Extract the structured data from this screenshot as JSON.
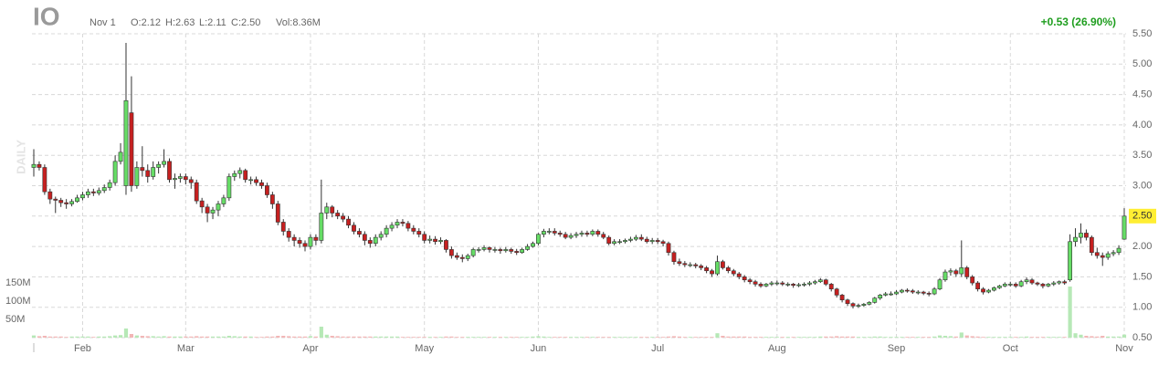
{
  "chart_data": {
    "type": "candlestick",
    "title": "IO",
    "date_label": "Nov 1",
    "ohlc_labels": [
      "O:2.12",
      "H:2.63",
      "L:2.11",
      "C:2.50"
    ],
    "volume_label": "Vol:8.36M",
    "change_label": "+0.53 (26.90%)",
    "watermark": "DAILY",
    "last_price": {
      "value": 2.5,
      "label": "2.50"
    },
    "up_color": "#66dd66",
    "down_color": "#c62020",
    "volume_up_color": "#b6e8b6",
    "volume_down_color": "#f2b6b6",
    "change_color": "#1f9e1f",
    "grid": true,
    "ylim": [
      0.5,
      5.5
    ],
    "yticks": [
      {
        "value": 0.5,
        "label": "0.50"
      },
      {
        "value": 1,
        "label": "1.00"
      },
      {
        "value": 1.5,
        "label": "1.50"
      },
      {
        "value": 2,
        "label": "2.00"
      },
      {
        "value": 2.5,
        "label": "2.50"
      },
      {
        "value": 3,
        "label": "3.00"
      },
      {
        "value": 3.5,
        "label": "3.50"
      },
      {
        "value": 4,
        "label": "4.00"
      },
      {
        "value": 4.5,
        "label": "4.50"
      },
      {
        "value": 5,
        "label": "5.00"
      },
      {
        "value": 5.5,
        "label": "5.50"
      }
    ],
    "volume_ylim": [
      0,
      150
    ],
    "volume_ticks": [
      {
        "value": 50,
        "label": "50M"
      },
      {
        "value": 100,
        "label": "100M"
      },
      {
        "value": 150,
        "label": "150M"
      }
    ],
    "categories": [
      null,
      null,
      null,
      null,
      null,
      null,
      null,
      null,
      null,
      "Feb",
      null,
      null,
      null,
      null,
      null,
      null,
      null,
      null,
      null,
      null,
      null,
      null,
      null,
      null,
      null,
      null,
      null,
      null,
      "Mar",
      null,
      null,
      null,
      null,
      null,
      null,
      null,
      null,
      null,
      null,
      null,
      null,
      null,
      null,
      null,
      null,
      null,
      null,
      null,
      null,
      null,
      null,
      "Apr",
      null,
      null,
      null,
      null,
      null,
      null,
      null,
      null,
      null,
      null,
      null,
      null,
      null,
      null,
      null,
      null,
      null,
      null,
      null,
      null,
      "May",
      null,
      null,
      null,
      null,
      null,
      null,
      null,
      null,
      null,
      null,
      null,
      null,
      null,
      null,
      null,
      null,
      null,
      null,
      null,
      null,
      "Jun",
      null,
      null,
      null,
      null,
      null,
      null,
      null,
      null,
      null,
      null,
      null,
      null,
      null,
      null,
      null,
      null,
      null,
      null,
      null,
      null,
      null,
      "Jul",
      null,
      null,
      null,
      null,
      null,
      null,
      null,
      null,
      null,
      null,
      null,
      null,
      null,
      null,
      null,
      null,
      null,
      null,
      null,
      null,
      null,
      "Aug",
      null,
      null,
      null,
      null,
      null,
      null,
      null,
      null,
      null,
      null,
      null,
      null,
      null,
      null,
      null,
      null,
      null,
      null,
      null,
      null,
      null,
      "Sep",
      null,
      null,
      null,
      null,
      null,
      null,
      null,
      null,
      null,
      null,
      null,
      null,
      null,
      null,
      null,
      null,
      null,
      null,
      null,
      null,
      "Oct",
      null,
      null,
      null,
      null,
      null,
      null,
      null,
      null,
      null,
      null,
      null,
      null,
      null,
      null,
      null,
      null,
      null,
      null,
      null,
      null,
      "Nov"
    ],
    "open": [
      3.3,
      3.35,
      3.3,
      2.9,
      2.78,
      2.76,
      2.72,
      2.7,
      2.74,
      2.8,
      2.85,
      2.9,
      2.88,
      2.92,
      2.97,
      3.05,
      3.4,
      3.0,
      4.2,
      3.0,
      3.3,
      3.25,
      3.15,
      3.3,
      3.35,
      3.4,
      3.1,
      3.12,
      3.15,
      3.1,
      3.05,
      2.75,
      2.65,
      2.55,
      2.6,
      2.7,
      2.8,
      3.15,
      3.2,
      3.25,
      3.1,
      3.1,
      3.05,
      3.0,
      2.85,
      2.7,
      2.4,
      2.25,
      2.15,
      2.1,
      2.05,
      2.0,
      2.15,
      2.1,
      2.55,
      2.65,
      2.55,
      2.5,
      2.45,
      2.35,
      2.25,
      2.2,
      2.1,
      2.05,
      2.15,
      2.2,
      2.3,
      2.35,
      2.4,
      2.38,
      2.3,
      2.25,
      2.2,
      2.1,
      2.12,
      2.08,
      2.1,
      1.95,
      1.85,
      1.82,
      1.8,
      1.85,
      1.95,
      1.95,
      1.98,
      1.95,
      1.95,
      1.93,
      1.95,
      1.92,
      1.9,
      1.95,
      2.0,
      2.05,
      2.2,
      2.25,
      2.25,
      2.22,
      2.2,
      2.15,
      2.18,
      2.2,
      2.22,
      2.2,
      2.25,
      2.2,
      2.15,
      2.05,
      2.08,
      2.08,
      2.1,
      2.12,
      2.15,
      2.12,
      2.08,
      2.1,
      2.08,
      2.05,
      1.9,
      1.75,
      1.72,
      1.7,
      1.7,
      1.68,
      1.65,
      1.6,
      1.55,
      1.75,
      1.65,
      1.6,
      1.55,
      1.5,
      1.45,
      1.42,
      1.38,
      1.35,
      1.38,
      1.4,
      1.4,
      1.38,
      1.38,
      1.36,
      1.37,
      1.38,
      1.4,
      1.42,
      1.45,
      1.38,
      1.3,
      1.2,
      1.12,
      1.06,
      1.02,
      1.03,
      1.05,
      1.08,
      1.15,
      1.2,
      1.22,
      1.22,
      1.25,
      1.28,
      1.27,
      1.25,
      1.25,
      1.23,
      1.22,
      1.3,
      1.45,
      1.58,
      1.6,
      1.55,
      1.65,
      1.5,
      1.4,
      1.3,
      1.25,
      1.28,
      1.32,
      1.35,
      1.38,
      1.38,
      1.35,
      1.42,
      1.45,
      1.4,
      1.38,
      1.35,
      1.38,
      1.4,
      1.42,
      1.45,
      2.08,
      2.15,
      2.22,
      2.15,
      1.9,
      1.85,
      1.82,
      1.88,
      1.9,
      2.12
    ],
    "high": [
      3.6,
      3.4,
      3.35,
      2.95,
      2.82,
      2.8,
      2.78,
      2.78,
      2.85,
      2.9,
      2.95,
      2.95,
      2.97,
      3.02,
      3.1,
      3.5,
      3.7,
      5.35,
      4.8,
      3.4,
      3.65,
      3.35,
      3.4,
      3.4,
      3.6,
      3.45,
      3.2,
      3.2,
      3.2,
      3.15,
      3.1,
      2.8,
      2.7,
      2.65,
      2.75,
      2.85,
      3.2,
      3.25,
      3.3,
      3.28,
      3.15,
      3.15,
      3.1,
      3.05,
      2.9,
      2.75,
      2.45,
      2.3,
      2.2,
      2.15,
      2.1,
      2.2,
      2.2,
      3.1,
      2.72,
      2.68,
      2.6,
      2.55,
      2.5,
      2.4,
      2.3,
      2.25,
      2.15,
      2.2,
      2.25,
      2.35,
      2.4,
      2.45,
      2.45,
      2.42,
      2.35,
      2.3,
      2.25,
      2.18,
      2.17,
      2.15,
      2.12,
      2.0,
      1.9,
      1.87,
      1.88,
      1.98,
      1.99,
      2.02,
      2.0,
      1.99,
      1.98,
      1.99,
      1.98,
      1.96,
      1.98,
      2.04,
      2.08,
      2.22,
      2.29,
      2.3,
      2.3,
      2.26,
      2.24,
      2.22,
      2.24,
      2.26,
      2.26,
      2.28,
      2.28,
      2.24,
      2.18,
      2.12,
      2.12,
      2.13,
      2.16,
      2.19,
      2.2,
      2.16,
      2.14,
      2.14,
      2.11,
      2.08,
      1.93,
      1.8,
      1.76,
      1.74,
      1.73,
      1.71,
      1.68,
      1.63,
      1.85,
      1.78,
      1.68,
      1.63,
      1.58,
      1.53,
      1.48,
      1.45,
      1.41,
      1.4,
      1.43,
      1.44,
      1.43,
      1.41,
      1.4,
      1.4,
      1.41,
      1.43,
      1.45,
      1.48,
      1.47,
      1.4,
      1.32,
      1.22,
      1.14,
      1.08,
      1.06,
      1.07,
      1.1,
      1.17,
      1.22,
      1.25,
      1.26,
      1.28,
      1.3,
      1.31,
      1.3,
      1.28,
      1.27,
      1.26,
      1.33,
      1.48,
      1.62,
      1.64,
      1.63,
      2.1,
      1.68,
      1.53,
      1.43,
      1.33,
      1.3,
      1.34,
      1.37,
      1.41,
      1.42,
      1.41,
      1.45,
      1.49,
      1.48,
      1.42,
      1.4,
      1.4,
      1.43,
      1.44,
      1.45,
      2.2,
      2.3,
      2.38,
      2.28,
      2.18,
      1.98,
      1.9,
      1.92,
      1.94,
      2.02,
      2.63
    ],
    "low": [
      3.15,
      3.25,
      2.85,
      2.7,
      2.55,
      2.65,
      2.62,
      2.66,
      2.72,
      2.76,
      2.8,
      2.83,
      2.84,
      2.88,
      2.92,
      3.0,
      3.35,
      2.85,
      2.9,
      2.95,
      3.15,
      3.05,
      3.1,
      3.2,
      3.3,
      3.05,
      2.95,
      3.05,
      3.02,
      2.95,
      2.7,
      2.55,
      2.4,
      2.45,
      2.5,
      2.65,
      2.75,
      3.08,
      3.12,
      3.05,
      3.02,
      3.0,
      2.95,
      2.8,
      2.62,
      2.35,
      2.18,
      2.08,
      2.0,
      1.98,
      1.92,
      1.95,
      2.02,
      2.05,
      2.45,
      2.48,
      2.45,
      2.4,
      2.3,
      2.2,
      2.15,
      2.02,
      1.98,
      2.0,
      2.1,
      2.15,
      2.25,
      2.3,
      2.33,
      2.25,
      2.2,
      2.15,
      2.05,
      2.05,
      2.03,
      2.04,
      1.9,
      1.8,
      1.78,
      1.74,
      1.76,
      1.82,
      1.9,
      1.92,
      1.9,
      1.9,
      1.88,
      1.9,
      1.88,
      1.86,
      1.88,
      1.93,
      1.98,
      2.02,
      2.15,
      2.2,
      2.18,
      2.16,
      2.12,
      2.12,
      2.14,
      2.16,
      2.16,
      2.17,
      2.16,
      2.12,
      2.02,
      2.02,
      2.04,
      2.05,
      2.07,
      2.09,
      2.09,
      2.05,
      2.04,
      2.04,
      2.0,
      1.85,
      1.7,
      1.68,
      1.66,
      1.66,
      1.64,
      1.61,
      1.56,
      1.5,
      1.52,
      1.62,
      1.56,
      1.51,
      1.46,
      1.41,
      1.38,
      1.34,
      1.32,
      1.33,
      1.35,
      1.36,
      1.35,
      1.34,
      1.32,
      1.33,
      1.34,
      1.35,
      1.37,
      1.4,
      1.35,
      1.26,
      1.16,
      1.08,
      1.02,
      0.98,
      0.99,
      1.01,
      1.03,
      1.06,
      1.12,
      1.18,
      1.19,
      1.2,
      1.23,
      1.24,
      1.22,
      1.21,
      1.2,
      1.18,
      1.2,
      1.28,
      1.42,
      1.52,
      1.5,
      1.5,
      1.46,
      1.36,
      1.26,
      1.21,
      1.23,
      1.26,
      1.3,
      1.33,
      1.34,
      1.32,
      1.33,
      1.38,
      1.37,
      1.35,
      1.31,
      1.33,
      1.35,
      1.37,
      1.37,
      1.42,
      2.0,
      2.05,
      2.1,
      1.85,
      1.8,
      1.68,
      1.78,
      1.84,
      1.86,
      2.11
    ],
    "close": [
      3.35,
      3.3,
      2.9,
      2.78,
      2.76,
      2.72,
      2.7,
      2.74,
      2.8,
      2.85,
      2.9,
      2.88,
      2.92,
      2.97,
      3.05,
      3.4,
      3.55,
      4.4,
      3.0,
      3.3,
      3.25,
      3.15,
      3.3,
      3.35,
      3.4,
      3.1,
      3.12,
      3.15,
      3.1,
      3.05,
      2.75,
      2.65,
      2.55,
      2.6,
      2.7,
      2.8,
      3.15,
      3.2,
      3.25,
      3.1,
      3.1,
      3.05,
      3.0,
      2.85,
      2.7,
      2.4,
      2.25,
      2.15,
      2.1,
      2.05,
      2.0,
      2.15,
      2.1,
      2.55,
      2.65,
      2.55,
      2.5,
      2.45,
      2.35,
      2.25,
      2.2,
      2.1,
      2.05,
      2.15,
      2.2,
      2.3,
      2.35,
      2.4,
      2.38,
      2.3,
      2.25,
      2.2,
      2.1,
      2.12,
      2.08,
      2.1,
      1.95,
      1.85,
      1.82,
      1.8,
      1.85,
      1.95,
      1.95,
      1.98,
      1.95,
      1.95,
      1.93,
      1.95,
      1.92,
      1.9,
      1.95,
      2.0,
      2.05,
      2.2,
      2.25,
      2.25,
      2.22,
      2.2,
      2.15,
      2.18,
      2.2,
      2.22,
      2.2,
      2.25,
      2.2,
      2.15,
      2.05,
      2.08,
      2.08,
      2.1,
      2.12,
      2.15,
      2.12,
      2.08,
      2.1,
      2.08,
      2.05,
      1.9,
      1.75,
      1.72,
      1.7,
      1.7,
      1.68,
      1.65,
      1.6,
      1.55,
      1.75,
      1.65,
      1.6,
      1.55,
      1.5,
      1.45,
      1.42,
      1.38,
      1.35,
      1.38,
      1.4,
      1.4,
      1.38,
      1.38,
      1.36,
      1.37,
      1.38,
      1.4,
      1.42,
      1.45,
      1.38,
      1.3,
      1.2,
      1.12,
      1.06,
      1.02,
      1.03,
      1.05,
      1.08,
      1.15,
      1.2,
      1.22,
      1.22,
      1.25,
      1.28,
      1.27,
      1.25,
      1.25,
      1.23,
      1.22,
      1.3,
      1.45,
      1.58,
      1.6,
      1.55,
      1.65,
      1.5,
      1.4,
      1.3,
      1.25,
      1.28,
      1.32,
      1.35,
      1.38,
      1.38,
      1.35,
      1.42,
      1.45,
      1.4,
      1.38,
      1.35,
      1.38,
      1.4,
      1.42,
      1.4,
      2.08,
      2.15,
      2.22,
      2.15,
      1.9,
      1.85,
      1.82,
      1.88,
      1.9,
      1.97,
      2.5
    ],
    "volume": [
      6,
      4,
      5,
      3,
      3,
      3,
      2,
      3,
      3,
      3,
      3,
      2,
      3,
      3,
      4,
      6,
      7,
      25,
      10,
      6,
      5,
      4,
      4,
      3,
      4,
      3,
      3,
      3,
      3,
      3,
      4,
      3,
      3,
      3,
      3,
      3,
      5,
      4,
      3,
      3,
      3,
      2,
      2,
      3,
      3,
      5,
      5,
      4,
      3,
      3,
      3,
      4,
      3,
      30,
      8,
      5,
      4,
      3,
      3,
      3,
      3,
      3,
      3,
      3,
      3,
      3,
      3,
      3,
      2,
      2,
      2,
      2,
      2,
      2,
      2,
      2,
      3,
      3,
      2,
      2,
      2,
      2,
      2,
      2,
      2,
      2,
      2,
      2,
      2,
      2,
      2,
      2,
      3,
      4,
      3,
      2,
      2,
      2,
      2,
      2,
      2,
      2,
      2,
      2,
      2,
      2,
      2,
      2,
      2,
      2,
      2,
      2,
      2,
      2,
      2,
      2,
      2,
      3,
      4,
      3,
      2,
      2,
      2,
      2,
      2,
      2,
      12,
      5,
      3,
      3,
      3,
      3,
      2,
      2,
      2,
      2,
      2,
      2,
      2,
      2,
      2,
      2,
      2,
      2,
      2,
      3,
      3,
      3,
      4,
      3,
      3,
      3,
      2,
      2,
      2,
      3,
      3,
      2,
      2,
      2,
      2,
      2,
      2,
      2,
      2,
      2,
      3,
      6,
      5,
      4,
      3,
      14,
      6,
      4,
      3,
      2,
      2,
      2,
      2,
      2,
      2,
      2,
      2,
      3,
      2,
      2,
      2,
      2,
      2,
      2,
      2,
      140,
      12,
      8,
      5,
      4,
      3,
      5,
      3,
      3,
      3,
      8.36
    ]
  }
}
